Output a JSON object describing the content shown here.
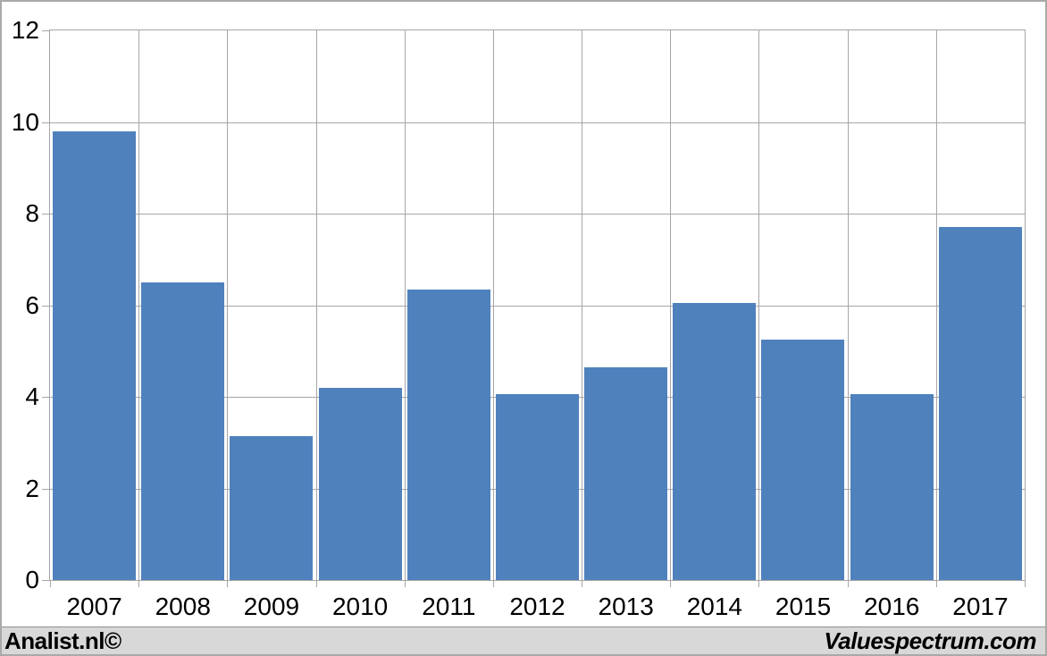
{
  "chart_data": {
    "type": "bar",
    "title": "",
    "xlabel": "",
    "ylabel": "",
    "categories": [
      "2007",
      "2008",
      "2009",
      "2010",
      "2011",
      "2012",
      "2013",
      "2014",
      "2015",
      "2016",
      "2017"
    ],
    "values": [
      9.8,
      6.5,
      3.15,
      4.2,
      6.35,
      4.05,
      4.65,
      6.05,
      5.25,
      4.05,
      7.7
    ],
    "ylim": [
      0,
      12
    ],
    "ytick_step": 2,
    "ytick_labels": [
      "0",
      "2",
      "4",
      "6",
      "8",
      "10",
      "12"
    ],
    "grid": true,
    "legend": "none",
    "colors": {
      "bar": "#4f81bd",
      "gridline": "#a6a6a6",
      "axis_text": "#000000",
      "plot_border": "#a6a6a6",
      "background": "#ffffff"
    }
  },
  "footer": {
    "left_text": "Analist.nl©",
    "right_text": "Valuespectrum.com",
    "background": "#d8d8d8"
  }
}
